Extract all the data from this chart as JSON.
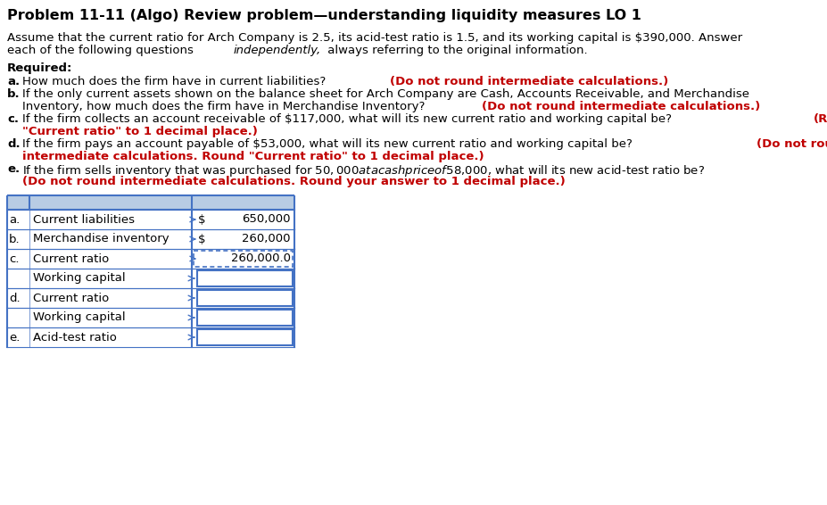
{
  "title": "Problem 11-11 (Algo) Review problem—understanding liquidity measures LO 1",
  "bg_color": "#ffffff",
  "table_header_bg": "#b8cce4",
  "table_border_color": "#4472c4",
  "text_color": "#000000",
  "red_color": "#c00000",
  "title_fontsize": 11.5,
  "body_fontsize": 9.5,
  "table_rows": [
    {
      "label_prefix": "a.",
      "label": "Current liabilities",
      "dollar_sign": "$",
      "value": "650,000",
      "input_box": false,
      "dotted": false
    },
    {
      "label_prefix": "b.",
      "label": "Merchandise inventory",
      "dollar_sign": "$",
      "value": "260,000",
      "input_box": false,
      "dotted": false
    },
    {
      "label_prefix": "c.",
      "label": "Current ratio",
      "dollar_sign": "",
      "value": "260,000.0",
      "input_box": false,
      "dotted": true
    },
    {
      "label_prefix": "",
      "label": "Working capital",
      "dollar_sign": "",
      "value": "",
      "input_box": true,
      "dotted": false
    },
    {
      "label_prefix": "d.",
      "label": "Current ratio",
      "dollar_sign": "",
      "value": "",
      "input_box": true,
      "dotted": false
    },
    {
      "label_prefix": "",
      "label": "Working capital",
      "dollar_sign": "",
      "value": "",
      "input_box": true,
      "dotted": false
    },
    {
      "label_prefix": "e.",
      "label": "Acid-test ratio",
      "dollar_sign": "",
      "value": "",
      "input_box": true,
      "dotted": false
    }
  ]
}
